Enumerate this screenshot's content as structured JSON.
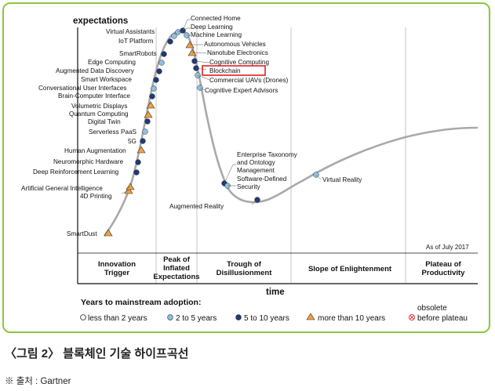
{
  "figure": {
    "y_axis_label": "expectations",
    "x_axis_label": "time",
    "as_of": "As of July 2017",
    "phases": [
      {
        "lines": [
          "Innovation",
          "Trigger"
        ]
      },
      {
        "lines": [
          "Peak of",
          "Inflated",
          "Expectations"
        ]
      },
      {
        "lines": [
          "Trough of",
          "Disillusionment"
        ]
      },
      {
        "lines": [
          "Slope of Enlightenment"
        ]
      },
      {
        "lines": [
          "Plateau of",
          "Productivity"
        ]
      }
    ],
    "legend": {
      "title": "Years to mainstream adoption:",
      "items": [
        {
          "label": "less than 2 years",
          "marker": "circle",
          "color": "#ffffff"
        },
        {
          "label": "2 to 5 years",
          "marker": "circle",
          "color": "#8fc1e3"
        },
        {
          "label": "5 to 10 years",
          "marker": "circle",
          "color": "#1f3a7a"
        },
        {
          "label": "more than 10 years",
          "marker": "triangle",
          "color": "#f0a040"
        },
        {
          "label_top": "obsolete",
          "label": "before plateau",
          "marker": "cross",
          "color": "#e03030"
        }
      ]
    },
    "highlight_color": "#e02020",
    "technologies": [
      {
        "name": "Connected Home",
        "category": "5 to 10 years"
      },
      {
        "name": "Virtual Assistants",
        "category": "2 to 5 years"
      },
      {
        "name": "Deep Learning",
        "category": "2 to 5 years"
      },
      {
        "name": "Machine Learning",
        "category": "2 to 5 years"
      },
      {
        "name": "IoT Platform",
        "category": "5 to 10 years"
      },
      {
        "name": "Autonomous Vehicles",
        "category": "more than 10 years"
      },
      {
        "name": "Nanotube Electronics",
        "category": "more than 10 years"
      },
      {
        "name": "SmartRobots",
        "category": "5 to 10 years"
      },
      {
        "name": "Cognitive Computing",
        "category": "5 to 10 years"
      },
      {
        "name": "Edge Computing",
        "category": "2 to 5 years"
      },
      {
        "name": "Blockchain",
        "category": "5 to 10 years",
        "highlighted": true
      },
      {
        "name": "Augmented Data Discovery",
        "category": "5 to 10 years"
      },
      {
        "name": "Commercial UAVs (Drones)",
        "category": "2 to 5 years"
      },
      {
        "name": "Cognitive Expert Advisors",
        "category": "2 to 5 years"
      },
      {
        "name": "Smart Workspace",
        "category": "5 to 10 years"
      },
      {
        "name": "Conversational User Interfaces",
        "category": "2 to 5 years"
      },
      {
        "name": "Brain-Computer Interface",
        "category": "more than 10 years"
      },
      {
        "name": "Volumetric Displays",
        "category": "more than 10 years"
      },
      {
        "name": "Quantum Computing",
        "category": "more than 10 years"
      },
      {
        "name": "Digital Twin",
        "category": "5 to 10 years"
      },
      {
        "name": "Serverless PaaS",
        "category": "2 to 5 years"
      },
      {
        "name": "5G",
        "category": "5 to 10 years"
      },
      {
        "name": "Human Augmentation",
        "category": "more than 10 years"
      },
      {
        "name": "Neuromorphic Hardware",
        "category": "5 to 10 years"
      },
      {
        "name": "Deep Reinforcement Learning",
        "category": "5 to 10 years"
      },
      {
        "name": "Artificial General Intelligence",
        "category": "more than 10 years"
      },
      {
        "name": "4D Printing",
        "category": "more than 10 years"
      },
      {
        "name": "SmartDust",
        "category": "more than 10 years"
      },
      {
        "name": "Enterprise Taxonomy and Ontology Management",
        "lines": [
          "Enterprise Taxonomy",
          "and Ontology",
          "Management"
        ],
        "category": "5 to 10 years"
      },
      {
        "name": "Software-Defined Security",
        "lines": [
          "Software-Defined",
          "Security"
        ],
        "category": "5 to 10 years"
      },
      {
        "name": "Augmented Reality",
        "category": "5 to 10 years"
      },
      {
        "name": "Virtual Reality",
        "category": "2 to 5 years"
      }
    ]
  },
  "caption": "〈그림 2〉 블록체인 기술 하이프곡선",
  "source": "※ 출처 : Gartner"
}
